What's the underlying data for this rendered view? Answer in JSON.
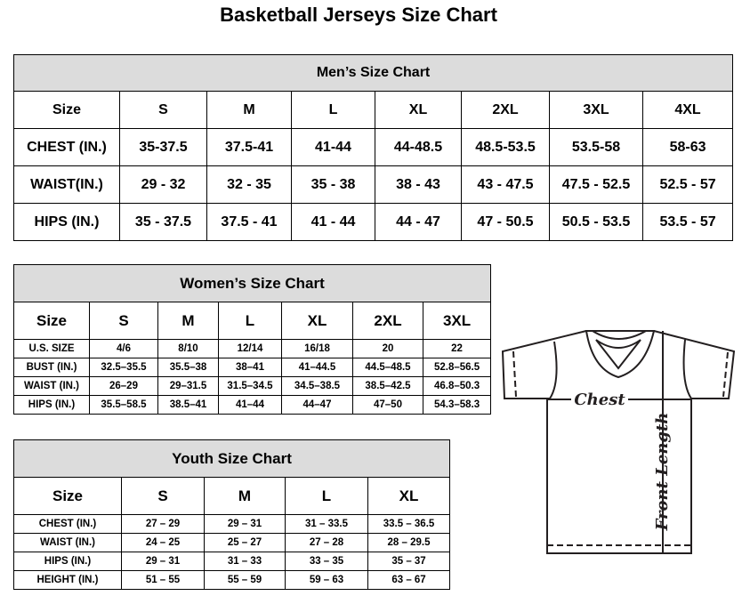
{
  "title": "Basketball Jerseys Size Chart",
  "men": {
    "title": "Men’s Size Chart",
    "header": [
      "Size",
      "S",
      "M",
      "L",
      "XL",
      "2XL",
      "3XL",
      "4XL"
    ],
    "rows": [
      [
        "CHEST (IN.)",
        "35-37.5",
        "37.5-41",
        "41-44",
        "44-48.5",
        "48.5-53.5",
        "53.5-58",
        "58-63"
      ],
      [
        "WAIST(IN.)",
        "29 - 32",
        "32 - 35",
        "35 - 38",
        "38 - 43",
        "43 - 47.5",
        "47.5 - 52.5",
        "52.5 - 57"
      ],
      [
        "HIPS (IN.)",
        "35 - 37.5",
        "37.5 - 41",
        "41 - 44",
        "44 - 47",
        "47 - 50.5",
        "50.5 - 53.5",
        "53.5 - 57"
      ]
    ]
  },
  "women": {
    "title": "Women’s Size Chart",
    "header": [
      "Size",
      "S",
      "M",
      "L",
      "XL",
      "2XL",
      "3XL"
    ],
    "rows": [
      [
        "U.S. SIZE",
        "4/6",
        "8/10",
        "12/14",
        "16/18",
        "20",
        "22"
      ],
      [
        "BUST (IN.)",
        "32.5–35.5",
        "35.5–38",
        "38–41",
        "41–44.5",
        "44.5–48.5",
        "52.8–56.5"
      ],
      [
        "WAIST (IN.)",
        "26–29",
        "29–31.5",
        "31.5–34.5",
        "34.5–38.5",
        "38.5–42.5",
        "46.8–50.3"
      ],
      [
        "HIPS (IN.)",
        "35.5–58.5",
        "38.5–41",
        "41–44",
        "44–47",
        "47–50",
        "54.3–58.3"
      ]
    ]
  },
  "youth": {
    "title": "Youth Size Chart",
    "header": [
      "Size",
      "S",
      "M",
      "L",
      "XL"
    ],
    "rows": [
      [
        "CHEST (IN.)",
        "27 – 29",
        "29 – 31",
        "31 – 33.5",
        "33.5 – 36.5"
      ],
      [
        "WAIST (IN.)",
        "24 – 25",
        "25 – 27",
        "27 – 28",
        "28 – 29.5"
      ],
      [
        "HIPS (IN.)",
        "29 – 31",
        "31 – 33",
        "33 – 35",
        "35 – 37"
      ],
      [
        "HEIGHT (IN.)",
        "51 – 55",
        "55 – 59",
        "59 – 63",
        "63 – 67"
      ]
    ]
  },
  "diagram": {
    "chest_label": "Chest",
    "length_label": "Front Length"
  },
  "colors": {
    "header_bg": "#dcdcdc",
    "line": "#231f20"
  }
}
